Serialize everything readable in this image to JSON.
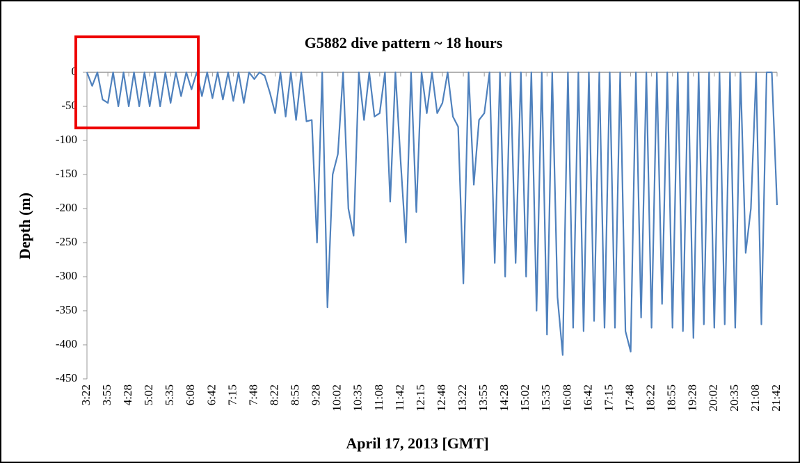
{
  "chart_data": {
    "type": "line",
    "title": "G5882 dive pattern ~ 18 hours",
    "y_label": "Depth (m)",
    "x_label": "April 17, 2013 [GMT]",
    "categories": [
      "3:22",
      null,
      null,
      null,
      "3:55",
      null,
      null,
      null,
      "4:28",
      null,
      null,
      null,
      "5:02",
      null,
      null,
      null,
      "5:35",
      null,
      null,
      null,
      "6:08",
      null,
      null,
      null,
      "6:42",
      null,
      null,
      null,
      "7:15",
      null,
      null,
      null,
      "7:48",
      null,
      null,
      null,
      "8:22",
      null,
      null,
      null,
      "8:55",
      null,
      null,
      null,
      "9:28",
      null,
      null,
      null,
      "10:02",
      null,
      null,
      null,
      "10:35",
      null,
      null,
      null,
      "11:08",
      null,
      null,
      null,
      "11:42",
      null,
      null,
      null,
      "12:15",
      null,
      null,
      null,
      "12:48",
      null,
      null,
      null,
      "13:22",
      null,
      null,
      null,
      "13:55",
      null,
      null,
      null,
      "14:28",
      null,
      null,
      null,
      "15:02",
      null,
      null,
      null,
      "15:35",
      null,
      null,
      null,
      "16:08",
      null,
      null,
      null,
      "16:42",
      null,
      null,
      null,
      "17:15",
      null,
      null,
      null,
      "17:48",
      null,
      null,
      null,
      "18:22",
      null,
      null,
      null,
      "18:55",
      null,
      null,
      null,
      "19:28",
      null,
      null,
      null,
      "20:02",
      null,
      null,
      null,
      "20:35",
      null,
      null,
      null,
      "21:08",
      null,
      null,
      null,
      "21:42"
    ],
    "values": [
      0,
      -20,
      0,
      -40,
      -45,
      0,
      -50,
      0,
      -50,
      0,
      -50,
      0,
      -50,
      0,
      -50,
      0,
      -45,
      0,
      -35,
      0,
      -25,
      0,
      -35,
      0,
      -38,
      0,
      -40,
      0,
      -42,
      0,
      -45,
      0,
      -10,
      0,
      -5,
      -30,
      -60,
      0,
      -65,
      0,
      -70,
      0,
      -72,
      -70,
      -250,
      0,
      -345,
      -150,
      -120,
      0,
      -200,
      -240,
      0,
      -70,
      0,
      -65,
      -60,
      0,
      -190,
      0,
      -130,
      -250,
      0,
      -205,
      0,
      -60,
      0,
      -60,
      -45,
      0,
      -65,
      -80,
      -310,
      0,
      -165,
      -70,
      -60,
      0,
      -280,
      0,
      -300,
      0,
      -280,
      0,
      -300,
      0,
      -350,
      0,
      -385,
      0,
      -330,
      -415,
      0,
      -375,
      0,
      -380,
      0,
      -365,
      0,
      -375,
      0,
      -375,
      0,
      -380,
      -410,
      0,
      -360,
      0,
      -375,
      0,
      -340,
      0,
      -375,
      0,
      -380,
      0,
      -390,
      0,
      -370,
      0,
      -375,
      0,
      -370,
      0,
      -375,
      0,
      -265,
      -200,
      0,
      -370,
      0,
      0,
      -195
    ],
    "color": "#4f81bd",
    "ylim": [
      -450,
      0
    ],
    "yticks": [
      0,
      -50,
      -100,
      -150,
      -200,
      -250,
      -300,
      -350,
      -400,
      -450
    ]
  }
}
